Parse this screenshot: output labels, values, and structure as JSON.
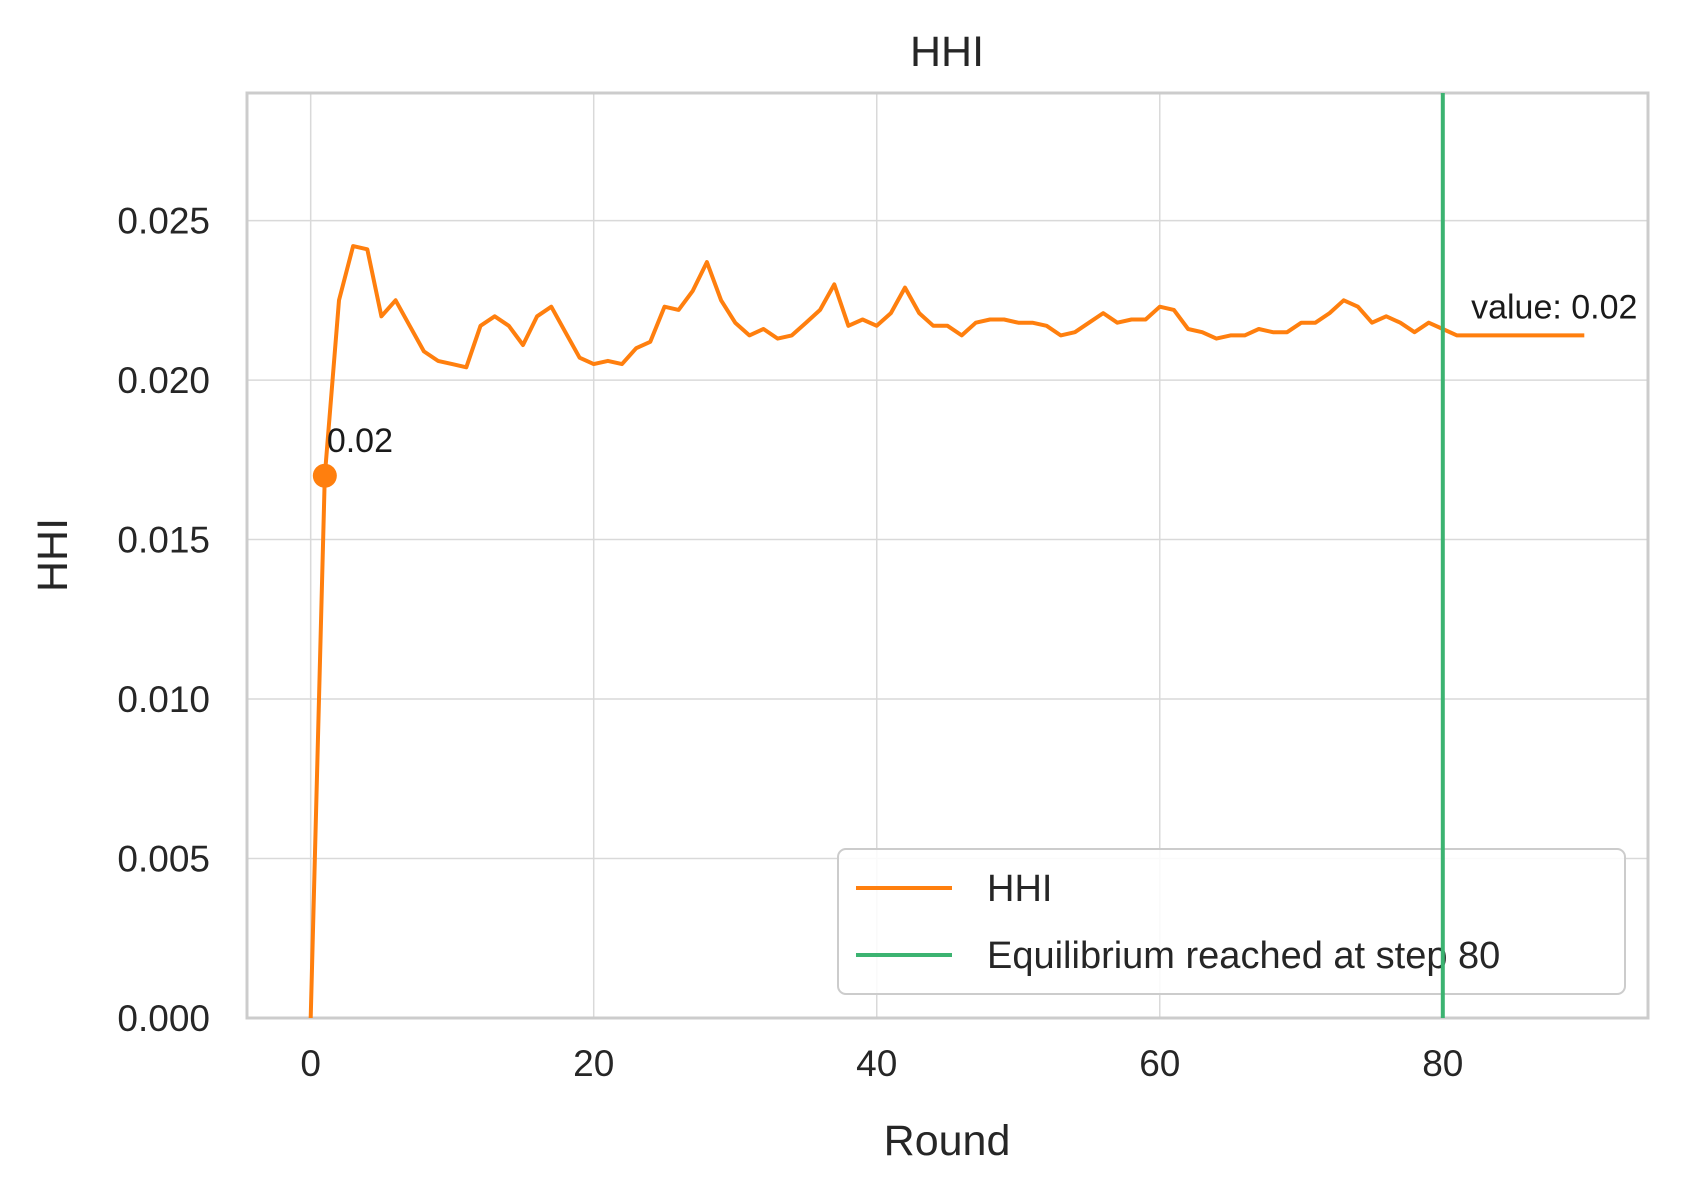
{
  "chart_data": {
    "type": "line",
    "title": "HHI",
    "xlabel": "Round",
    "ylabel": "HHI",
    "xlim": [
      -4.5,
      94.5
    ],
    "ylim": [
      0.0,
      0.029
    ],
    "xticks": [
      0,
      20,
      40,
      60,
      80
    ],
    "xtick_labels": [
      "0",
      "20",
      "40",
      "60",
      "80"
    ],
    "yticks": [
      0.0,
      0.005,
      0.01,
      0.015,
      0.02,
      0.025
    ],
    "ytick_labels": [
      "0.000",
      "0.005",
      "0.010",
      "0.015",
      "0.020",
      "0.025"
    ],
    "grid": true,
    "legend_position": "lower right",
    "colors": {
      "series": "#ff7f0e",
      "equilibrium": "#3cb371",
      "grid": "#d9d9d9",
      "frame": "#cccccc"
    },
    "series": [
      {
        "name": "HHI",
        "x": [
          0,
          1,
          2,
          3,
          4,
          5,
          6,
          7,
          8,
          9,
          10,
          11,
          12,
          13,
          14,
          15,
          16,
          17,
          18,
          19,
          20,
          21,
          22,
          23,
          24,
          25,
          26,
          27,
          28,
          29,
          30,
          31,
          32,
          33,
          34,
          35,
          36,
          37,
          38,
          39,
          40,
          41,
          42,
          43,
          44,
          45,
          46,
          47,
          48,
          49,
          50,
          51,
          52,
          53,
          54,
          55,
          56,
          57,
          58,
          59,
          60,
          61,
          62,
          63,
          64,
          65,
          66,
          67,
          68,
          69,
          70,
          71,
          72,
          73,
          74,
          75,
          76,
          77,
          78,
          79,
          80,
          81,
          82,
          83,
          84,
          85,
          86,
          87,
          88,
          89,
          90
        ],
        "values": [
          0.0,
          0.017,
          0.0225,
          0.0242,
          0.0241,
          0.022,
          0.0225,
          0.0217,
          0.0209,
          0.0206,
          0.0205,
          0.0204,
          0.0217,
          0.022,
          0.0217,
          0.0211,
          0.022,
          0.0223,
          0.0215,
          0.0207,
          0.0205,
          0.0206,
          0.0205,
          0.021,
          0.0212,
          0.0223,
          0.0222,
          0.0228,
          0.0237,
          0.0225,
          0.0218,
          0.0214,
          0.0216,
          0.0213,
          0.0214,
          0.0218,
          0.0222,
          0.023,
          0.0217,
          0.0219,
          0.0217,
          0.0221,
          0.0229,
          0.0221,
          0.0217,
          0.0217,
          0.0214,
          0.0218,
          0.0219,
          0.0219,
          0.0218,
          0.0218,
          0.0217,
          0.0214,
          0.0215,
          0.0218,
          0.0221,
          0.0218,
          0.0219,
          0.0219,
          0.0223,
          0.0222,
          0.0216,
          0.0215,
          0.0213,
          0.0214,
          0.0214,
          0.0216,
          0.0215,
          0.0215,
          0.0218,
          0.0218,
          0.0221,
          0.0225,
          0.0223,
          0.0218,
          0.022,
          0.0218,
          0.0215,
          0.0218,
          0.0216,
          0.0214,
          0.0214,
          0.0214,
          0.0214,
          0.0214,
          0.0214,
          0.0214,
          0.0214,
          0.0214,
          0.0214
        ]
      },
      {
        "name": "Equilibrium reached at step 80",
        "type": "vline",
        "x": 80
      }
    ],
    "annotations": [
      {
        "text": "0.02",
        "x": 1,
        "y": 0.017,
        "marker": true
      },
      {
        "text": "value: 0.02",
        "x": 82,
        "y": 0.0223
      }
    ]
  }
}
